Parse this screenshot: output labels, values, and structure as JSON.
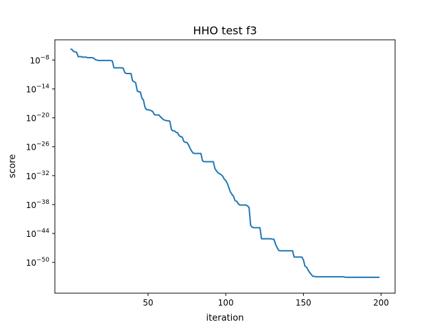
{
  "chart_data": {
    "type": "line",
    "title": "HHO test f3",
    "xlabel": "iteration",
    "ylabel": "score",
    "xscale": "linear",
    "yscale": "log",
    "xlim": [
      -10,
      209
    ],
    "ylim_log10": [
      -56.4,
      -3.8
    ],
    "grid": false,
    "line_color": "#1f77b4",
    "xticks": [
      {
        "value": 50,
        "label": "50"
      },
      {
        "value": 100,
        "label": "100"
      },
      {
        "value": 150,
        "label": "150"
      },
      {
        "value": 200,
        "label": "200"
      }
    ],
    "yticks": [
      {
        "exp": -8,
        "base": "10",
        "sup": "−8"
      },
      {
        "exp": -14,
        "base": "10",
        "sup": "−14"
      },
      {
        "exp": -20,
        "base": "10",
        "sup": "−20"
      },
      {
        "exp": -26,
        "base": "10",
        "sup": "−26"
      },
      {
        "exp": -32,
        "base": "10",
        "sup": "−32"
      },
      {
        "exp": -38,
        "base": "10",
        "sup": "−38"
      },
      {
        "exp": -44,
        "base": "10",
        "sup": "−44"
      },
      {
        "exp": -50,
        "base": "10",
        "sup": "−50"
      }
    ],
    "series": [
      {
        "x": [
          0,
          1,
          2,
          3,
          4,
          5,
          6,
          7,
          8,
          9,
          10,
          11,
          12,
          13,
          14,
          15,
          16,
          17,
          18,
          19,
          20,
          21,
          22,
          23,
          24,
          25,
          26,
          27,
          28,
          29,
          30,
          31,
          32,
          33,
          34,
          35,
          36,
          37,
          38,
          39,
          40,
          41,
          42,
          43,
          44,
          45,
          46,
          47,
          48,
          49,
          50,
          51,
          52,
          53,
          54,
          55,
          56,
          57,
          58,
          59,
          60,
          61,
          62,
          63,
          64,
          65,
          66,
          67,
          68,
          69,
          70,
          71,
          72,
          73,
          74,
          75,
          76,
          77,
          78,
          79,
          80,
          81,
          82,
          83,
          84,
          85,
          86,
          87,
          88,
          89,
          90,
          91,
          92,
          93,
          94,
          95,
          96,
          97,
          98,
          99,
          100,
          101,
          102,
          103,
          104,
          105,
          106,
          107,
          108,
          109,
          110,
          111,
          112,
          113,
          114,
          115,
          116,
          117,
          118,
          119,
          120,
          121,
          122,
          123,
          124,
          125,
          126,
          127,
          128,
          129,
          130,
          131,
          132,
          133,
          134,
          135,
          136,
          137,
          138,
          139,
          140,
          141,
          142,
          143,
          144,
          145,
          146,
          147,
          148,
          149,
          150,
          151,
          152,
          153,
          154,
          155,
          156,
          157,
          158,
          159,
          160,
          161,
          162,
          163,
          164,
          165,
          166,
          167,
          168,
          169,
          170,
          171,
          172,
          173,
          174,
          175,
          176,
          177,
          178,
          179,
          180,
          181,
          182,
          183,
          184,
          185,
          186,
          187,
          188,
          189,
          190,
          191,
          192,
          193,
          194,
          195,
          196,
          197,
          198,
          199
        ],
        "log10_y": [
          -5.7,
          -5.8,
          -6.2,
          -6.3,
          -6.4,
          -7.3,
          -7.3,
          -7.3,
          -7.4,
          -7.4,
          -7.4,
          -7.5,
          -7.5,
          -7.5,
          -7.5,
          -7.6,
          -7.9,
          -8.0,
          -8.1,
          -8.1,
          -8.1,
          -8.1,
          -8.1,
          -8.1,
          -8.1,
          -8.1,
          -8.1,
          -8.2,
          -9.6,
          -9.6,
          -9.6,
          -9.6,
          -9.6,
          -9.6,
          -9.7,
          -10.6,
          -10.8,
          -10.8,
          -10.8,
          -10.8,
          -12.3,
          -12.5,
          -12.7,
          -14.4,
          -14.6,
          -14.6,
          -15.9,
          -16.3,
          -17.8,
          -18.3,
          -18.3,
          -18.4,
          -18.5,
          -18.7,
          -19.3,
          -19.4,
          -19.4,
          -19.4,
          -19.8,
          -20.1,
          -20.4,
          -20.5,
          -20.6,
          -20.6,
          -20.7,
          -22.4,
          -22.7,
          -22.7,
          -23.0,
          -23.1,
          -23.7,
          -23.9,
          -24.0,
          -24.9,
          -25.1,
          -25.1,
          -25.6,
          -26.3,
          -26.9,
          -27.3,
          -27.4,
          -27.4,
          -27.4,
          -27.4,
          -27.4,
          -28.9,
          -29.1,
          -29.1,
          -29.1,
          -29.1,
          -29.1,
          -29.1,
          -29.1,
          -30.5,
          -31.0,
          -31.4,
          -31.6,
          -31.8,
          -32.1,
          -32.7,
          -33.0,
          -33.6,
          -34.5,
          -35.4,
          -35.9,
          -36.3,
          -37.2,
          -37.3,
          -37.8,
          -38.1,
          -38.1,
          -38.1,
          -38.1,
          -38.1,
          -38.3,
          -38.6,
          -42.3,
          -42.7,
          -42.8,
          -42.8,
          -42.8,
          -42.8,
          -42.8,
          -45.1,
          -45.1,
          -45.1,
          -45.1,
          -45.1,
          -45.1,
          -45.1,
          -45.2,
          -45.2,
          -46.2,
          -46.9,
          -47.5,
          -47.6,
          -47.6,
          -47.6,
          -47.6,
          -47.6,
          -47.6,
          -47.6,
          -47.6,
          -47.6,
          -48.9,
          -48.9,
          -48.9,
          -48.9,
          -48.9,
          -48.9,
          -49.5,
          -50.8,
          -51.0,
          -51.6,
          -52.1,
          -52.5,
          -52.9,
          -52.9,
          -53.0,
          -53.0,
          -53.0,
          -53.0,
          -53.0,
          -53.0,
          -53.0,
          -53.0,
          -53.0,
          -53.0,
          -53.0,
          -53.0,
          -53.0,
          -53.0,
          -53.0,
          -53.0,
          -53.0,
          -53.0,
          -53.0,
          -53.1,
          -53.1,
          -53.1,
          -53.1,
          -53.1,
          -53.1,
          -53.1,
          -53.1,
          -53.1,
          -53.1,
          -53.1,
          -53.1,
          -53.1,
          -53.1,
          -53.1,
          -53.1,
          -53.1,
          -53.1,
          -53.1,
          -53.1,
          -53.1,
          -53.1,
          -53.1,
          -53.1,
          -53.1,
          -53.1
        ]
      }
    ]
  }
}
